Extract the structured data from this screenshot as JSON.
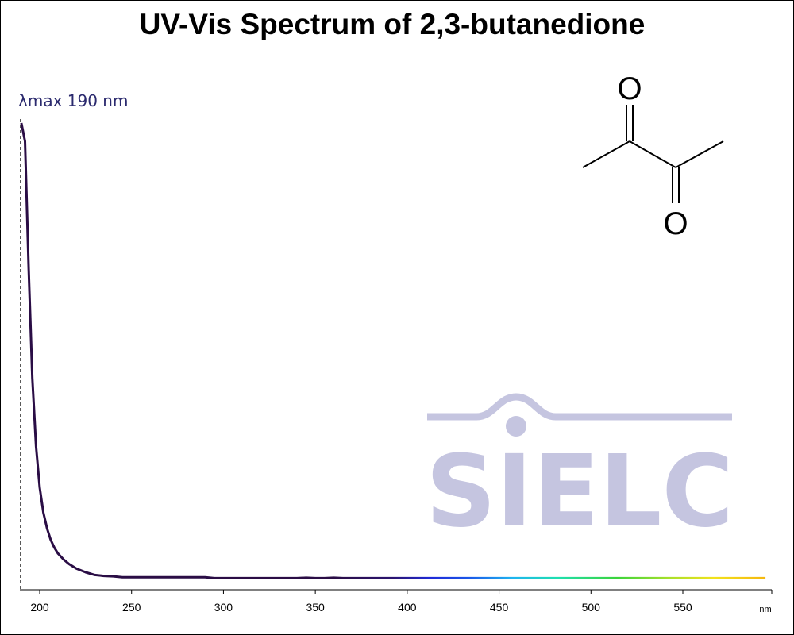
{
  "chart_data": {
    "type": "line",
    "title": "UV-Vis Spectrum of 2,3-butanedione",
    "xlabel": "nm",
    "ylabel": "",
    "xlim": [
      190,
      597
    ],
    "ylim": [
      0,
      1
    ],
    "x_ticks": [
      200,
      250,
      300,
      350,
      400,
      450,
      500,
      550
    ],
    "annotation": "λmax  190 nm",
    "lambda_max": 190,
    "grid": false,
    "line_coloring": "visible-spectrum gradient by wavelength",
    "series": [
      {
        "x": [
          190,
          192,
          194,
          196,
          198,
          200,
          202,
          204,
          206,
          208,
          210,
          213,
          216,
          220,
          225,
          230,
          235,
          240,
          245,
          250,
          260,
          270,
          280,
          290,
          295,
          300,
          320,
          340,
          345,
          350,
          355,
          360,
          365,
          370,
          400,
          430,
          450,
          470,
          500,
          530,
          560,
          585,
          590,
          595
        ],
        "y": [
          1.0,
          0.96,
          0.68,
          0.44,
          0.29,
          0.2,
          0.145,
          0.11,
          0.085,
          0.068,
          0.055,
          0.042,
          0.032,
          0.022,
          0.014,
          0.008,
          0.006,
          0.005,
          0.003,
          0.003,
          0.003,
          0.003,
          0.003,
          0.003,
          0.001,
          0.001,
          0.001,
          0.001,
          0.002,
          0.001,
          0.001,
          0.002,
          0.001,
          0.001,
          0.001,
          0.001,
          0.001,
          0.001,
          0.001,
          0.001,
          0.001,
          0.001,
          0.001,
          0.001
        ]
      }
    ]
  },
  "structure": {
    "atoms": [
      "O",
      "O"
    ]
  },
  "watermark": {
    "text": "SIELC",
    "color": "#c5c5e0"
  },
  "colors": {
    "uv_line": "#2a0d45",
    "annotation": "#2b2a6e"
  }
}
